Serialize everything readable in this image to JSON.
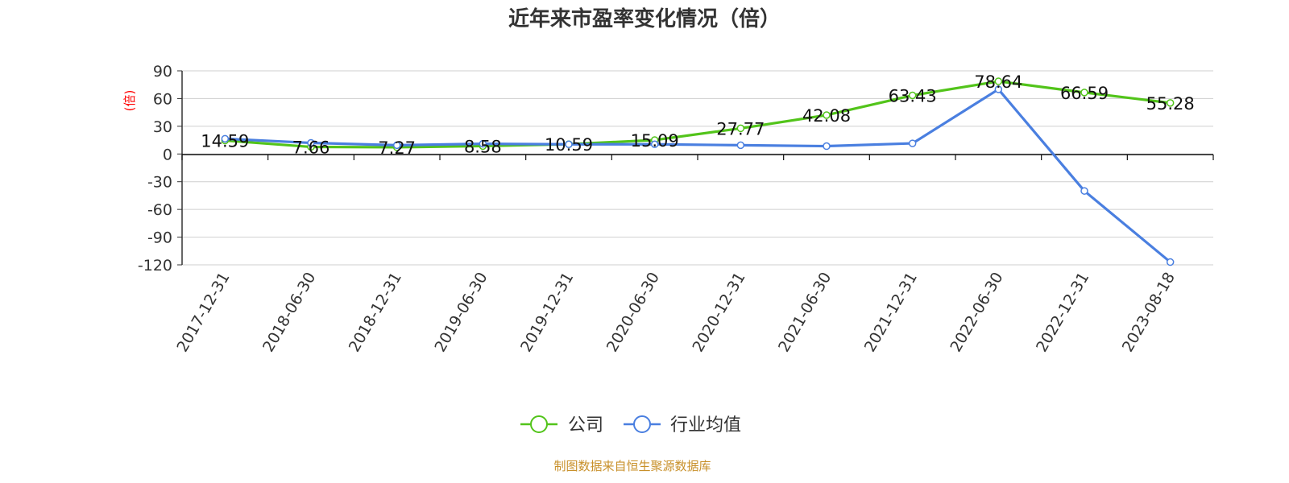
{
  "chart_data": {
    "type": "line",
    "title": "近年来市盈率变化情况（倍）",
    "ylabel": "(倍)",
    "xlabel": "",
    "categories": [
      "2017-12-31",
      "2018-06-30",
      "2018-12-31",
      "2019-06-30",
      "2019-12-31",
      "2020-06-30",
      "2020-12-31",
      "2021-06-30",
      "2021-12-31",
      "2022-06-30",
      "2022-12-31",
      "2023-08-18"
    ],
    "series": [
      {
        "name": "公司",
        "color": "#52c41a",
        "show_labels": true,
        "values": [
          14.59,
          7.66,
          7.27,
          8.58,
          10.59,
          15.09,
          27.77,
          42.08,
          63.43,
          78.64,
          66.59,
          55.28
        ],
        "labels": [
          "14.59",
          "7.66",
          "7.27",
          "8.58",
          "10.59",
          "15.09",
          "27.77",
          "42.08",
          "63.43",
          "78.64",
          "66.59",
          "55.28"
        ]
      },
      {
        "name": "行业均值",
        "color": "#4a7fe0",
        "show_labels": false,
        "values": [
          16.5,
          12.0,
          9.5,
          11.0,
          10.5,
          10.5,
          9.5,
          8.5,
          11.5,
          70.0,
          -40.0,
          -117.0
        ]
      }
    ],
    "ylim": [
      -120,
      90
    ],
    "yticks": [
      90,
      60,
      30,
      0,
      -30,
      -60,
      -90,
      -120
    ],
    "ytick_labels": [
      "90",
      "60",
      "30",
      "0",
      "-30",
      "-60",
      "-90",
      "-120"
    ],
    "grid": true,
    "legend_position": "bottom-center",
    "ylabel_color": "#ff0000"
  },
  "source": {
    "text": "制图数据来自恒生聚源数据库",
    "color": "#c8902a"
  }
}
